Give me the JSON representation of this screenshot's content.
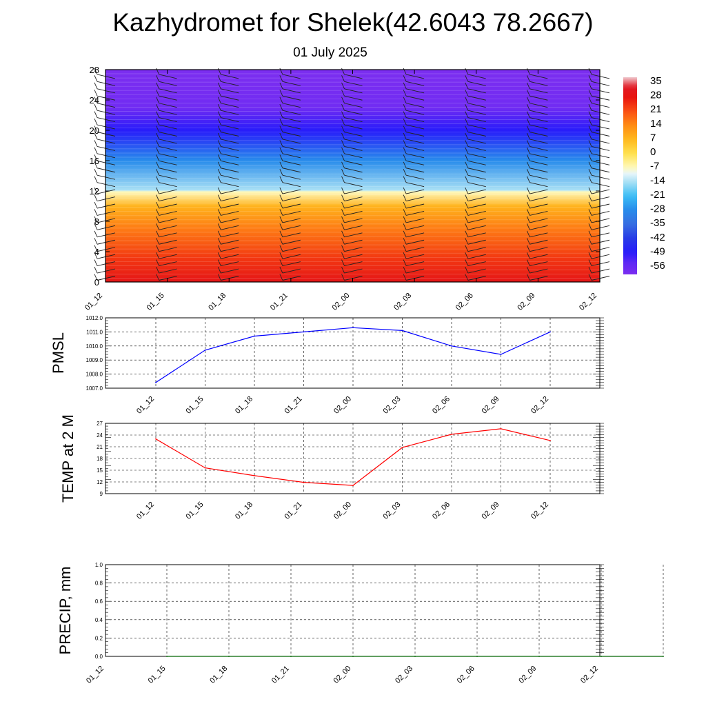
{
  "title": "Kazhydromet for Shelek(42.6043 78.2667)",
  "subtitle": "01 July 2025",
  "chart_data": [
    {
      "type": "heatmap",
      "description_ref": "cross-section",
      "x_ticks": [
        "01_12",
        "01_15",
        "01_18",
        "01_21",
        "02_00",
        "02_03",
        "02_06",
        "02_09",
        "02_12"
      ],
      "y_ticks": [
        "0",
        "4",
        "8",
        "12",
        "16",
        "20",
        "24",
        "28"
      ],
      "ylim": [
        0,
        28
      ],
      "colorbar_labels": [
        "35",
        "28",
        "21",
        "14",
        "7",
        "0",
        "-7",
        "-14",
        "-21",
        "-28",
        "-35",
        "-42",
        "-49",
        "-56"
      ],
      "colorbar_range": [
        -60,
        38
      ],
      "field_profile": [
        {
          "height": 0,
          "value": 30
        },
        {
          "height": 3,
          "value": 24
        },
        {
          "height": 7,
          "value": 16
        },
        {
          "height": 10,
          "value": 8
        },
        {
          "height": 11.9,
          "value": -7
        },
        {
          "height": 12.1,
          "value": -14
        },
        {
          "height": 16,
          "value": -28
        },
        {
          "height": 20,
          "value": -49
        },
        {
          "height": 23,
          "value": -58
        },
        {
          "height": 28,
          "value": -60
        }
      ],
      "colors": {
        "warm": "#e81010",
        "cold": "#7a30f0"
      }
    },
    {
      "type": "line",
      "ylabel": "PMSL",
      "x": [
        "01_12",
        "01_15",
        "01_18",
        "01_21",
        "02_00",
        "02_03",
        "02_06",
        "02_09",
        "02_12"
      ],
      "y_ticks": [
        "1007.0",
        "1008.0",
        "1009.0",
        "1010.0",
        "1011.0",
        "1012.0"
      ],
      "ylim": [
        1007,
        1012
      ],
      "series": [
        {
          "values": [
            1007.4,
            1009.7,
            1010.7,
            1011.0,
            1011.3,
            1011.1,
            1010.0,
            1009.4,
            1011.0
          ],
          "color": "#0000ff"
        }
      ]
    },
    {
      "type": "line",
      "ylabel": "TEMP at 2 M",
      "x": [
        "01_12",
        "01_15",
        "01_18",
        "01_21",
        "02_00",
        "02_03",
        "02_06",
        "02_09",
        "02_12"
      ],
      "y_ticks": [
        "9",
        "12",
        "15",
        "18",
        "21",
        "24",
        "27"
      ],
      "ylim": [
        9,
        27
      ],
      "series": [
        {
          "values": [
            23.0,
            15.6,
            13.6,
            11.9,
            11.1,
            20.8,
            24.2,
            25.6,
            22.6
          ],
          "color": "#ff0000"
        }
      ]
    },
    {
      "type": "line",
      "ylabel": "PRECIP, mm",
      "x_ticks": [
        "01_12",
        "01_15",
        "01_18",
        "01_21",
        "02_00",
        "02_03",
        "02_06",
        "02_09",
        "02_12"
      ],
      "y_ticks": [
        "0.0",
        "0.2",
        "0.4",
        "0.6",
        "0.8",
        "1.0"
      ],
      "ylim": [
        0,
        1
      ],
      "series": [
        {
          "values": [
            0,
            0,
            0,
            0,
            0,
            0,
            0,
            0,
            0
          ],
          "color": "#006400"
        }
      ]
    }
  ]
}
